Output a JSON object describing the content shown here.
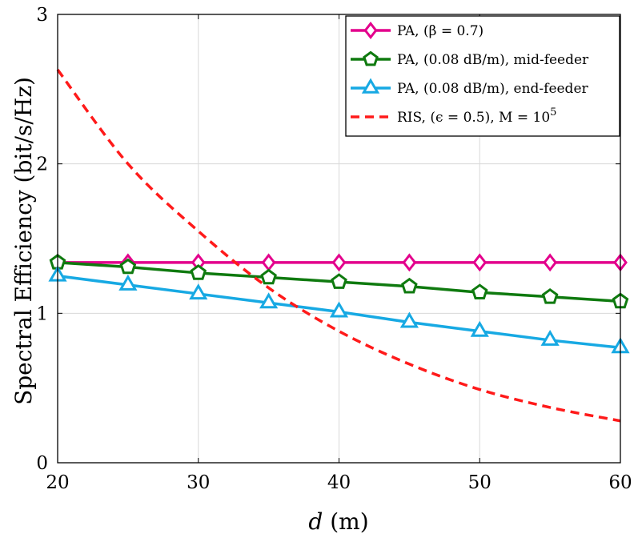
{
  "chart_data": {
    "type": "line",
    "xlabel": "d (m)",
    "ylabel": "Spectral Efficiency (bit/s/Hz)",
    "xlim": [
      20,
      60
    ],
    "ylim": [
      0,
      3
    ],
    "xticks": [
      "20",
      "30",
      "40",
      "50",
      "60"
    ],
    "yticks": [
      "0",
      "1",
      "2",
      "3"
    ],
    "grid": true,
    "legend_position": "top-right",
    "series": [
      {
        "name": "PA, (β = 0.7)",
        "color": "#e3008c",
        "marker": "diamond",
        "dashed": false,
        "x": [
          20,
          25,
          30,
          35,
          40,
          45,
          50,
          55,
          60
        ],
        "y": [
          1.34,
          1.34,
          1.34,
          1.34,
          1.34,
          1.34,
          1.34,
          1.34,
          1.34
        ]
      },
      {
        "name": "PA, (0.08 dB/m), mid-feeder",
        "color": "#0f7a0f",
        "marker": "pentagon",
        "dashed": false,
        "x": [
          20,
          25,
          30,
          35,
          40,
          45,
          50,
          55,
          60
        ],
        "y": [
          1.34,
          1.31,
          1.27,
          1.24,
          1.21,
          1.18,
          1.14,
          1.11,
          1.08
        ]
      },
      {
        "name": "PA, (0.08 dB/m), end-feeder",
        "color": "#17a9e3",
        "marker": "triangle",
        "dashed": false,
        "x": [
          20,
          25,
          30,
          35,
          40,
          45,
          50,
          55,
          60
        ],
        "y": [
          1.25,
          1.19,
          1.13,
          1.07,
          1.01,
          0.94,
          0.88,
          0.82,
          0.77
        ]
      },
      {
        "name": "RIS, (ϵ = 0.5), M = 10^5",
        "color": "#ff1a1a",
        "marker": "none",
        "dashed": true,
        "x": [
          20,
          25,
          30,
          35,
          40,
          45,
          50,
          55,
          60
        ],
        "y": [
          2.63,
          2.0,
          1.55,
          1.17,
          0.88,
          0.66,
          0.49,
          0.37,
          0.28
        ]
      }
    ]
  }
}
